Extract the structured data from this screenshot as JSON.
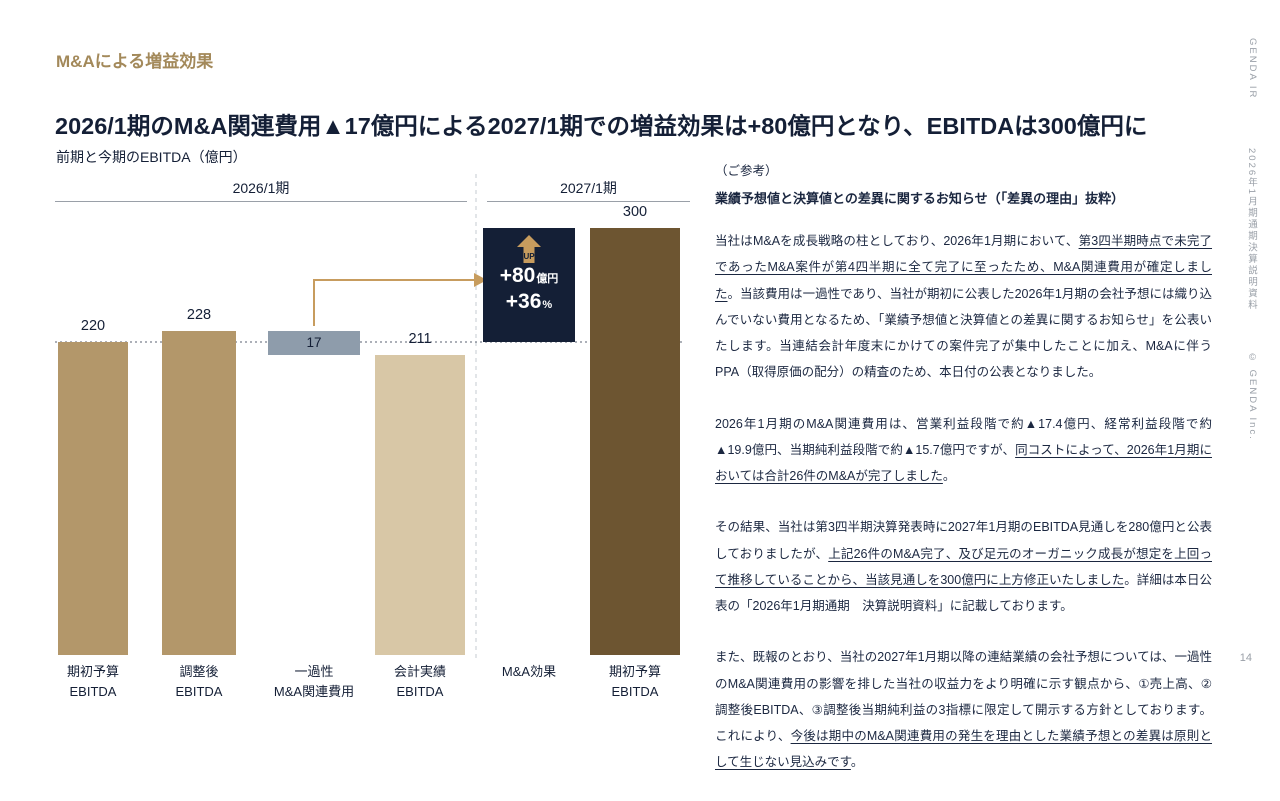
{
  "page": {
    "tag": "M&Aによる増益効果",
    "title": "2026/1期のM&A関連費用▲17億円による2027/1期での増益効果は+80億円となり、EBITDAは300億円に",
    "chart_subtitle": "前期と今期のEBITDA（億円）",
    "page_number": "14"
  },
  "side_rail": {
    "brand": "GENDA IR",
    "doc_title": "2026年1月期通期決算説明資料",
    "copyright": "© GENDA Inc."
  },
  "colors": {
    "gold_heading": "#a3895a",
    "navy": "#141f36",
    "tan": "#b3976a",
    "light_tan": "#d8c7a6",
    "gray": "#8e9cab",
    "brown": "#6d5531",
    "arrow_gold": "#c79c5e",
    "text": "#1b2740",
    "muted": "#9aa0a8"
  },
  "chart_data": {
    "type": "bar",
    "title": "前期と今期のEBITDA（億円）",
    "unit": "億円",
    "ylim": [
      0,
      320
    ],
    "grid": false,
    "period_groups": [
      {
        "label": "2026/1期"
      },
      {
        "label": "2027/1期"
      }
    ],
    "dotted_reference_value": 220,
    "bars": [
      {
        "label": "期初予算\nEBITDA",
        "kind": "tan",
        "value": 220,
        "value_label": "220"
      },
      {
        "label": "調整後\nEBITDA",
        "kind": "tan",
        "value": 228,
        "value_label": "228"
      },
      {
        "label": "一過性\nM&A関連費用",
        "kind": "float-gray",
        "value": 17,
        "from": 211,
        "to": 228,
        "value_label": "17"
      },
      {
        "label": "会計実績\nEBITDA",
        "kind": "light-tan",
        "value": 211,
        "value_label": "211"
      },
      {
        "label": "M&A効果",
        "kind": "effect-box",
        "from": 220,
        "to": 300,
        "badge": "UP",
        "line1_big": "+80",
        "line1_small": "億円",
        "line2_big": "+36",
        "line2_small": "%"
      },
      {
        "label": "期初予算\nEBITDA",
        "kind": "brown",
        "value": 300,
        "value_label": "300"
      }
    ]
  },
  "notes": {
    "ref_label": "（ご参考）",
    "heading": "業績予想値と決算値との差異に関するお知らせ（「差異の理由」抜粋）",
    "paragraphs": [
      {
        "segments": [
          {
            "t": "当社はM&Aを成長戦略の柱としており、2026年1月期において、",
            "u": false
          },
          {
            "t": "第3四半期時点で未完了であったM&A案件が第4四半期に全て完了に至ったため、M&A関連費用が確定しました",
            "u": true
          },
          {
            "t": "。当該費用は一過性であり、当社が期初に公表した2026年1月期の会社予想には織り込んでいない費用となるため、「業績予想値と決算値との差異に関するお知らせ」を公表いたします。当連結会計年度末にかけての案件完了が集中したことに加え、M&Aに伴うPPA（取得原価の配分）の精査のため、本日付の公表となりました。",
            "u": false
          }
        ]
      },
      {
        "segments": [
          {
            "t": "2026年1月期のM&A関連費用は、営業利益段階で約▲17.4億円、経常利益段階で約▲19.9億円、当期純利益段階で約▲15.7億円ですが、",
            "u": false
          },
          {
            "t": "同コストによって、2026年1月期においては合計26件のM&Aが完了しました",
            "u": true
          },
          {
            "t": "。",
            "u": false
          }
        ]
      },
      {
        "segments": [
          {
            "t": "その結果、当社は第3四半期決算発表時に2027年1月期のEBITDA見通しを280億円と公表しておりましたが、",
            "u": false
          },
          {
            "t": "上記26件のM&A完了、及び足元のオーガニック成長が想定を上回って推移していることから、当該見通しを300億円に上方修正いたしました",
            "u": true
          },
          {
            "t": "。詳細は本日公表の「2026年1月期通期　決算説明資料」に記載しております。",
            "u": false
          }
        ]
      },
      {
        "segments": [
          {
            "t": "また、既報のとおり、当社の2027年1月期以降の連結業績の会社予想については、一過性のM&A関連費用の影響を排した当社の収益力をより明確に示す観点から、①売上高、②調整後EBITDA、③調整後当期純利益の3指標に限定して開示する方針としております。これにより、",
            "u": false
          },
          {
            "t": "今後は期中のM&A関連費用の発生を理由とした業績予想との差異は原則として生じない見込みです",
            "u": true
          },
          {
            "t": "。",
            "u": false
          }
        ]
      }
    ]
  }
}
